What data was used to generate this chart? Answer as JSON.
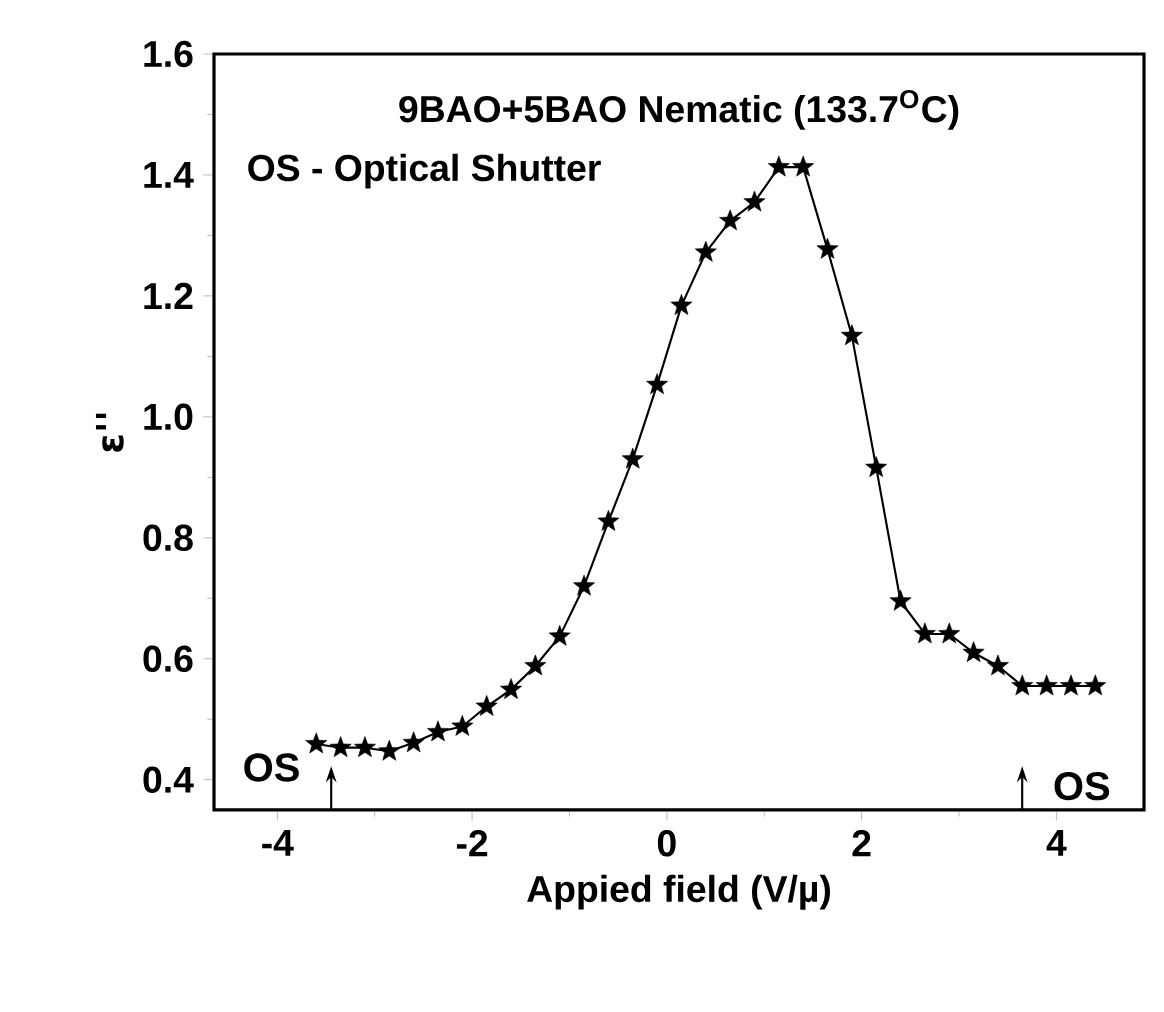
{
  "chart_data": {
    "type": "line",
    "title": "9BAO+5BAO Nematic (133.7$^{O}$C)",
    "xlabel": "Appied field  (V/µ)",
    "ylabel": "ε''",
    "x": [
      -3.6,
      -3.35,
      -3.1,
      -2.85,
      -2.6,
      -2.35,
      -2.1,
      -1.85,
      -1.6,
      -1.35,
      -1.1,
      -0.85,
      -0.6,
      -0.35,
      -0.1,
      0.15,
      0.4,
      0.65,
      0.9,
      1.15,
      1.4,
      1.65,
      1.9,
      2.15,
      2.4,
      2.65,
      2.9,
      3.15,
      3.4,
      3.65,
      3.9,
      4.15,
      4.4
    ],
    "series": [
      {
        "color": "#000000",
        "values": [
          0.459,
          0.453,
          0.453,
          0.447,
          0.461,
          0.479,
          0.488,
          0.521,
          0.549,
          0.588,
          0.637,
          0.72,
          0.827,
          0.93,
          1.053,
          1.184,
          1.272,
          1.324,
          1.355,
          1.413,
          1.413,
          1.277,
          1.134,
          0.916,
          0.695,
          0.641,
          0.641,
          0.61,
          0.588,
          0.555,
          0.555,
          0.555,
          0.555
        ]
      }
    ],
    "marker": "star",
    "line_style": "solid",
    "xlim": [
      -4.65,
      4.9
    ],
    "ylim": [
      0.35,
      1.6
    ],
    "xticks": [
      -4,
      -2,
      0,
      2,
      4
    ],
    "yticks": [
      0.4,
      0.6,
      0.8,
      {
        "value": 1.0,
        "label": "1.0"
      },
      1.2,
      1.4,
      1.6
    ],
    "annotations": [
      "OS - Optical Shutter",
      "OS",
      "OS"
    ]
  }
}
